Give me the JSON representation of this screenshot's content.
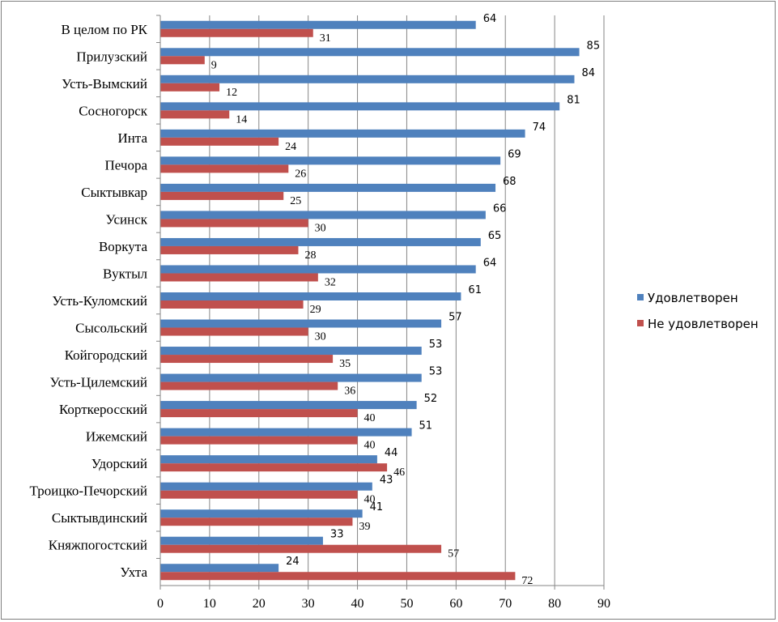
{
  "chart_data": {
    "type": "bar",
    "orientation": "horizontal",
    "categories": [
      "В целом по РК",
      "Прилузский",
      "Усть-Вымский",
      "Сосногорск",
      "Инта",
      "Печора",
      "Сыктывкар",
      "Усинск",
      "Воркута",
      "Вуктыл",
      "Усть-Куломский",
      "Сысольский",
      "Койгородский",
      "Усть-Цилемский",
      "Корткеросский",
      "Ижемский",
      "Удорский",
      "Троицко-Печорский",
      "Сыктывдинский",
      "Княжпогостский",
      "Ухта"
    ],
    "series": [
      {
        "name": "Удовлетворен",
        "color": "#4f81bd",
        "values": [
          64,
          85,
          84,
          81,
          74,
          69,
          68,
          66,
          65,
          64,
          61,
          57,
          53,
          53,
          52,
          51,
          44,
          43,
          41,
          33,
          24
        ]
      },
      {
        "name": "Не удовлетворен",
        "color": "#c0504d",
        "values": [
          31,
          9,
          12,
          14,
          24,
          26,
          25,
          30,
          28,
          32,
          29,
          30,
          35,
          36,
          40,
          40,
          46,
          40,
          39,
          57,
          72
        ]
      }
    ],
    "xaxis_ticks": [
      "0",
      "10",
      "20",
      "30",
      "40",
      "50",
      "60",
      "70",
      "80",
      "90"
    ],
    "xlim": [
      0,
      90
    ],
    "grid": "vertical",
    "legend_position": "right",
    "data_labels": true
  }
}
